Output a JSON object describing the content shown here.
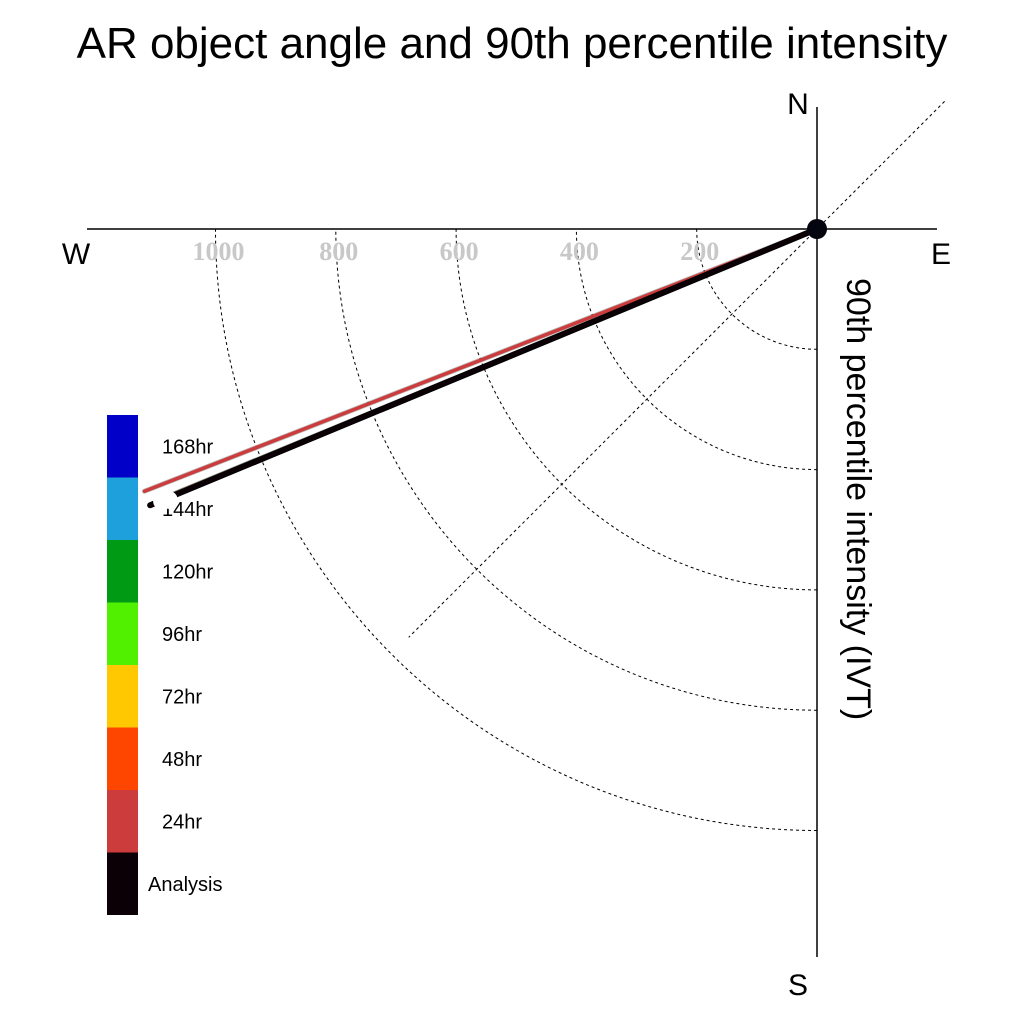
{
  "chart_data": {
    "type": "polar-vector",
    "title": "AR object angle and 90th percentile intensity",
    "ylabel": "90th percentile intensity (IVT)",
    "directions": {
      "north": "N",
      "south": "S",
      "east": "E",
      "west": "W"
    },
    "radial_ticks": [
      200,
      400,
      600,
      800,
      1000
    ],
    "rmax": 1200,
    "grid": true,
    "legend_position": "left",
    "series": [
      {
        "name": "168hr",
        "color": "#0000c8",
        "angle_deg": 247.5,
        "intensity": null
      },
      {
        "name": "144hr",
        "color": "#1ea0dc",
        "angle_deg": 247.5,
        "intensity": 1170
      },
      {
        "name": "120hr",
        "color": "#009a14",
        "angle_deg": 247.5,
        "intensity": null
      },
      {
        "name": "96hr",
        "color": "#50f000",
        "angle_deg": 247.6,
        "intensity": 1155
      },
      {
        "name": "72hr",
        "color": "#ffc800",
        "angle_deg": 247.6,
        "intensity": 1173
      },
      {
        "name": "48hr",
        "color": "#ff4600",
        "angle_deg": 247.5,
        "intensity": 1200
      },
      {
        "name": "24hr",
        "color": "#cd3c3c",
        "angle_deg": 248.7,
        "intensity": 1200
      },
      {
        "name": "Analysis",
        "color": "#0a0006",
        "angle_deg": 247.5,
        "intensity": 1200
      }
    ]
  }
}
